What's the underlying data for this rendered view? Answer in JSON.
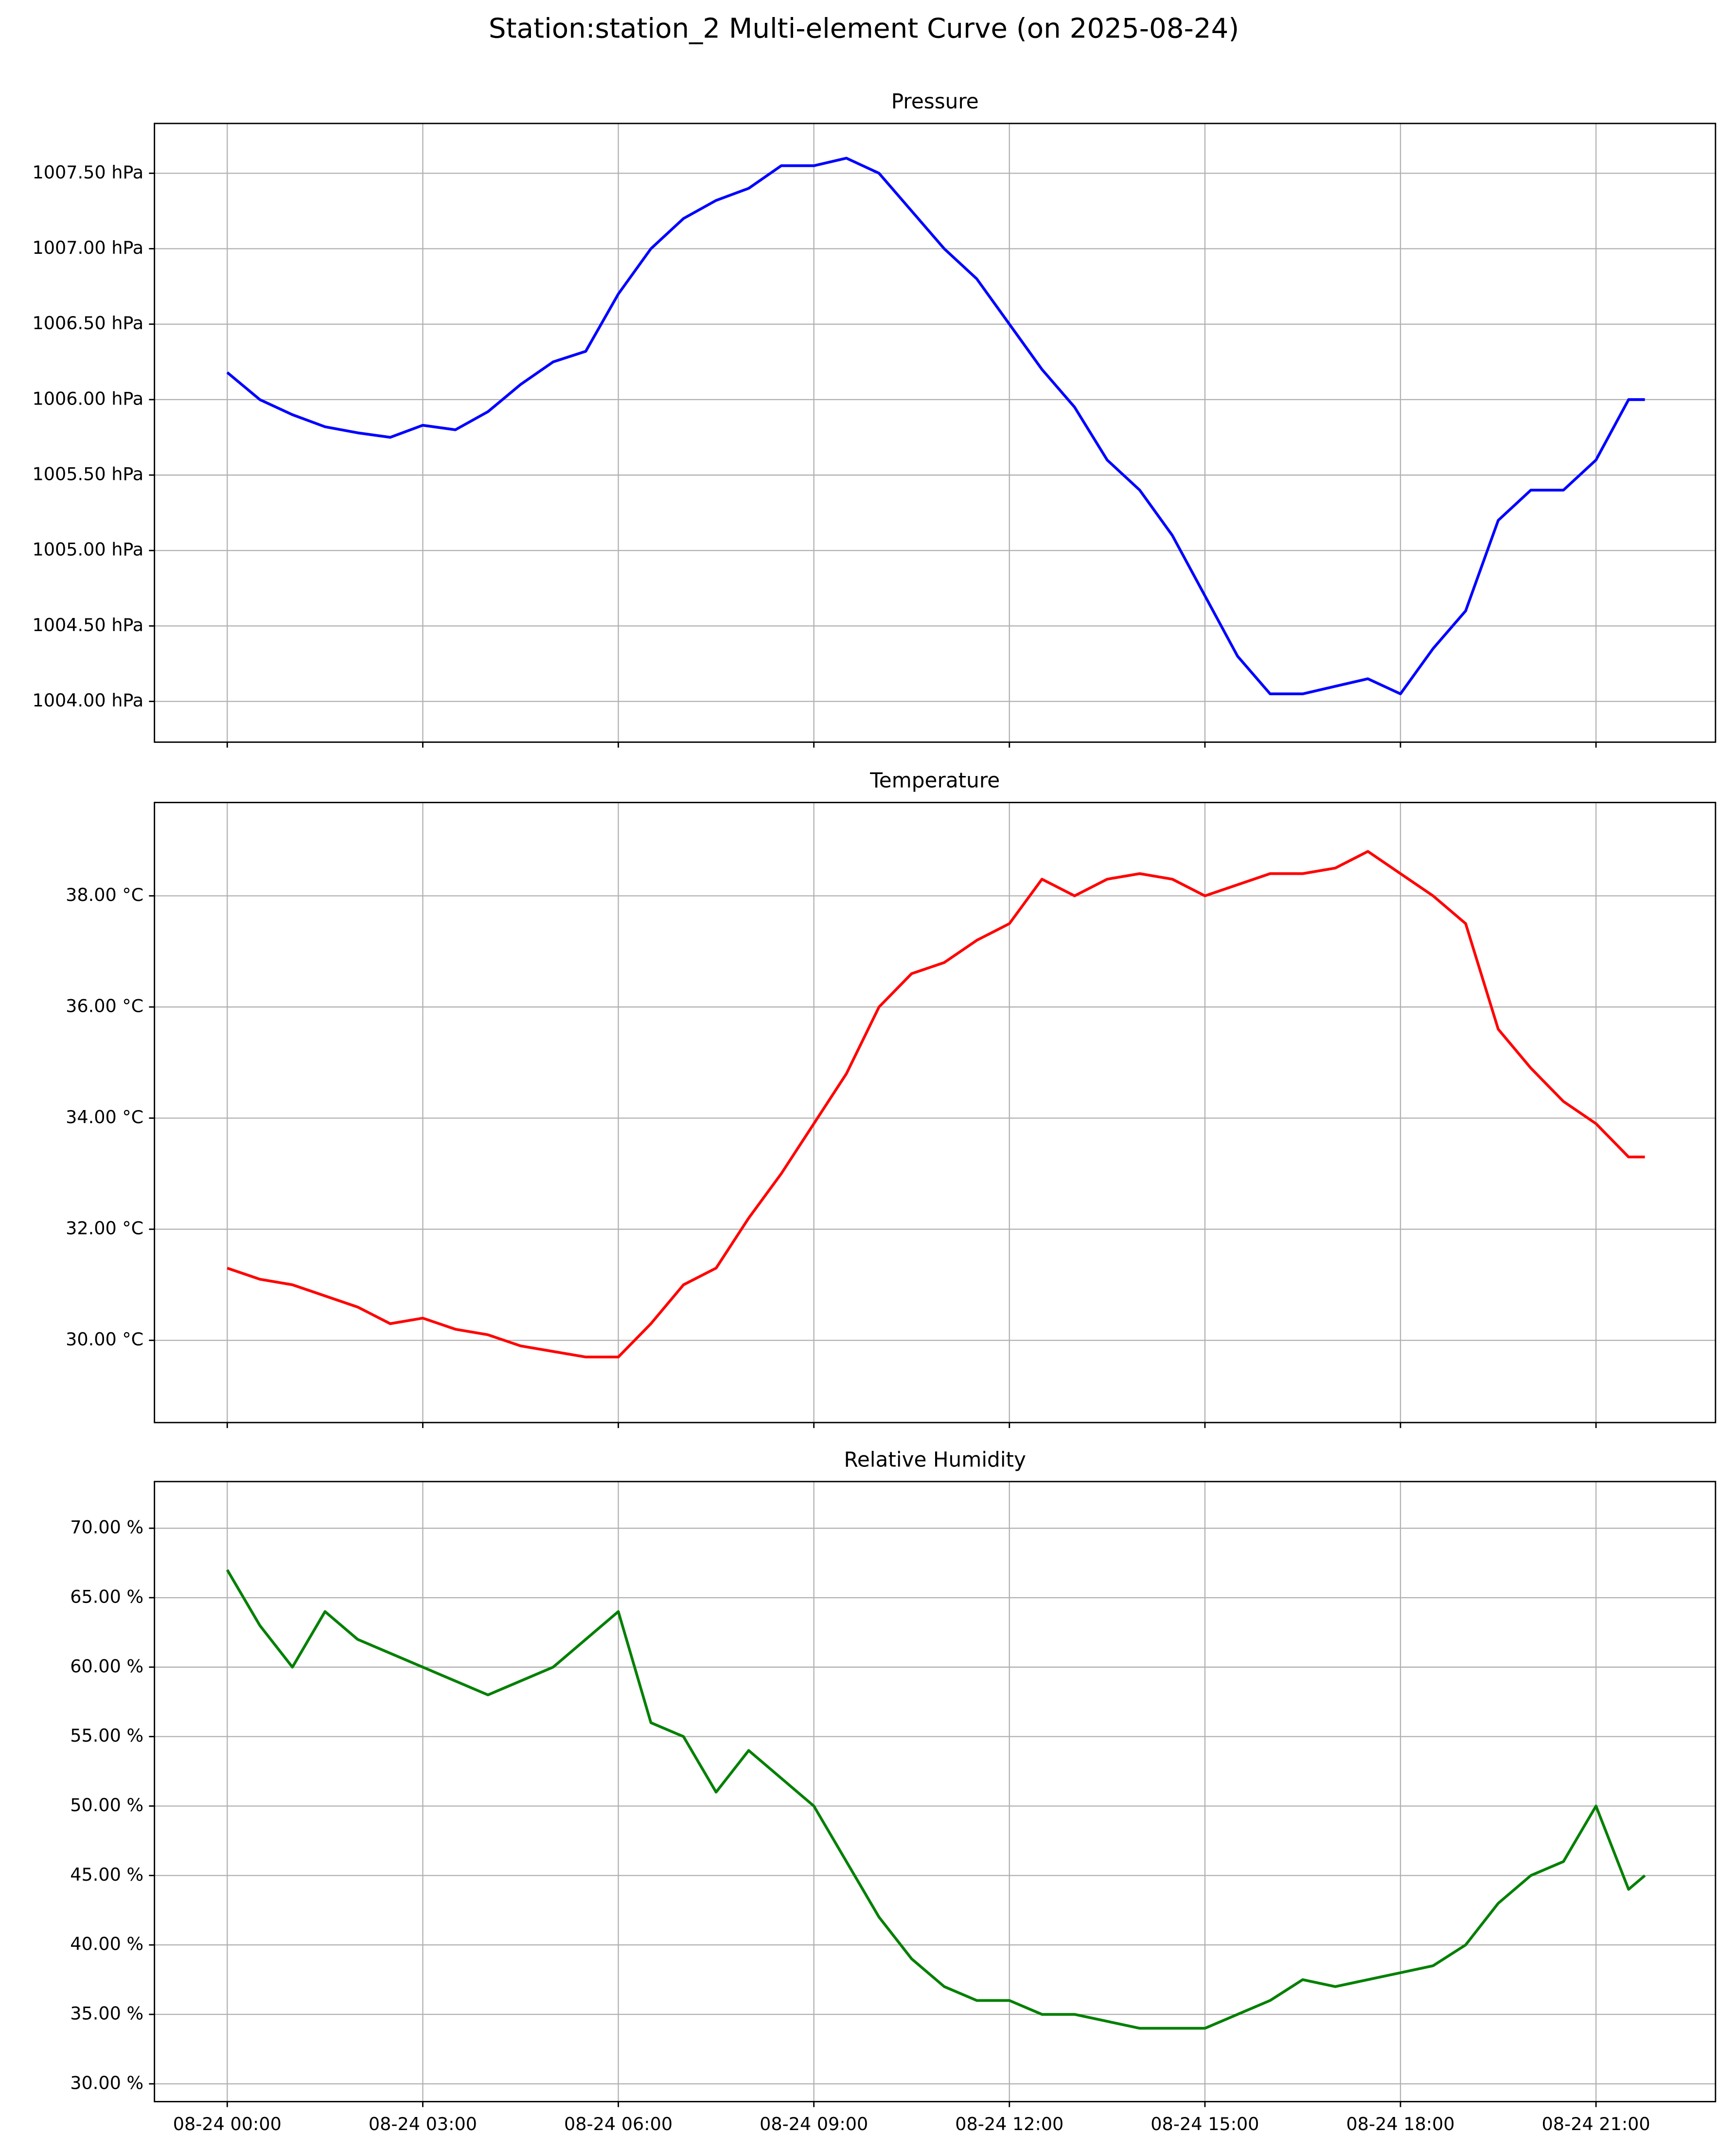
{
  "title": "Station:station_2 Multi-element Curve (on 2025-08-24)",
  "chart_data": [
    {
      "type": "line",
      "title": "Pressure",
      "color": "#0000ff",
      "grid": true,
      "show_xtick_labels": false,
      "x": [
        "08-24 00:00",
        "08-24 00:30",
        "08-24 01:00",
        "08-24 01:30",
        "08-24 02:00",
        "08-24 02:30",
        "08-24 03:00",
        "08-24 03:30",
        "08-24 04:00",
        "08-24 04:30",
        "08-24 05:00",
        "08-24 05:30",
        "08-24 06:00",
        "08-24 06:30",
        "08-24 07:00",
        "08-24 07:30",
        "08-24 08:00",
        "08-24 08:30",
        "08-24 09:00",
        "08-24 09:30",
        "08-24 10:00",
        "08-24 10:30",
        "08-24 11:00",
        "08-24 11:30",
        "08-24 12:00",
        "08-24 12:30",
        "08-24 13:00",
        "08-24 13:30",
        "08-24 14:00",
        "08-24 14:30",
        "08-24 15:00",
        "08-24 15:30",
        "08-24 16:00",
        "08-24 16:30",
        "08-24 17:00",
        "08-24 17:30",
        "08-24 18:00",
        "08-24 18:30",
        "08-24 19:00",
        "08-24 19:30",
        "08-24 20:00",
        "08-24 20:30",
        "08-24 21:00",
        "08-24 21:30",
        "08-24 21:45"
      ],
      "values": [
        1006.18,
        1006.0,
        1005.9,
        1005.82,
        1005.78,
        1005.75,
        1005.83,
        1005.8,
        1005.92,
        1006.1,
        1006.25,
        1006.32,
        1006.7,
        1007.0,
        1007.2,
        1007.32,
        1007.4,
        1007.55,
        1007.55,
        1007.6,
        1007.5,
        1007.25,
        1007.0,
        1006.8,
        1006.5,
        1006.2,
        1005.95,
        1005.6,
        1005.4,
        1005.1,
        1004.7,
        1004.3,
        1004.05,
        1004.05,
        1004.1,
        1004.15,
        1004.05,
        1004.35,
        1004.6,
        1005.2,
        1005.4,
        1005.4,
        1005.6,
        1006.0,
        1006.0
      ],
      "xlim": [
        "08-23 22:53",
        "08-24 22:50"
      ],
      "xticks": [
        "08-24 00:00",
        "08-24 03:00",
        "08-24 06:00",
        "08-24 09:00",
        "08-24 12:00",
        "08-24 15:00",
        "08-24 18:00",
        "08-24 21:00"
      ],
      "ylim": [
        1003.73,
        1007.83
      ],
      "yticks": [
        {
          "value": 1004.0,
          "label": "1004.00 hPa"
        },
        {
          "value": 1004.5,
          "label": "1004.50 hPa"
        },
        {
          "value": 1005.0,
          "label": "1005.00 hPa"
        },
        {
          "value": 1005.5,
          "label": "1005.50 hPa"
        },
        {
          "value": 1006.0,
          "label": "1006.00 hPa"
        },
        {
          "value": 1006.5,
          "label": "1006.50 hPa"
        },
        {
          "value": 1007.0,
          "label": "1007.00 hPa"
        },
        {
          "value": 1007.5,
          "label": "1007.50 hPa"
        }
      ]
    },
    {
      "type": "line",
      "title": "Temperature",
      "color": "#ff0000",
      "grid": true,
      "show_xtick_labels": false,
      "x": [
        "08-24 00:00",
        "08-24 00:30",
        "08-24 01:00",
        "08-24 01:30",
        "08-24 02:00",
        "08-24 02:30",
        "08-24 03:00",
        "08-24 03:30",
        "08-24 04:00",
        "08-24 04:30",
        "08-24 05:00",
        "08-24 05:30",
        "08-24 06:00",
        "08-24 06:30",
        "08-24 07:00",
        "08-24 07:30",
        "08-24 08:00",
        "08-24 08:30",
        "08-24 09:00",
        "08-24 09:30",
        "08-24 10:00",
        "08-24 10:30",
        "08-24 11:00",
        "08-24 11:30",
        "08-24 12:00",
        "08-24 12:30",
        "08-24 13:00",
        "08-24 13:30",
        "08-24 14:00",
        "08-24 14:30",
        "08-24 15:00",
        "08-24 15:30",
        "08-24 16:00",
        "08-24 16:30",
        "08-24 17:00",
        "08-24 17:30",
        "08-24 18:00",
        "08-24 18:30",
        "08-24 19:00",
        "08-24 19:30",
        "08-24 20:00",
        "08-24 20:30",
        "08-24 21:00",
        "08-24 21:30",
        "08-24 21:45"
      ],
      "values": [
        31.3,
        31.1,
        31.0,
        30.8,
        30.6,
        30.3,
        30.4,
        30.2,
        30.1,
        29.9,
        29.8,
        29.7,
        29.7,
        30.3,
        31.0,
        31.3,
        32.2,
        33.0,
        33.9,
        34.8,
        36.0,
        36.6,
        36.8,
        37.2,
        37.5,
        38.3,
        38.0,
        38.3,
        38.4,
        38.3,
        38.0,
        38.2,
        38.4,
        38.4,
        38.5,
        38.8,
        38.4,
        38.0,
        37.5,
        35.6,
        34.9,
        34.3,
        33.9,
        33.3,
        33.3
      ],
      "xlim": [
        "08-23 22:53",
        "08-24 22:50"
      ],
      "xticks": [
        "08-24 00:00",
        "08-24 03:00",
        "08-24 06:00",
        "08-24 09:00",
        "08-24 12:00",
        "08-24 15:00",
        "08-24 18:00",
        "08-24 21:00"
      ],
      "ylim": [
        28.52,
        39.68
      ],
      "yticks": [
        {
          "value": 30,
          "label": "30.00 °C"
        },
        {
          "value": 32,
          "label": "32.00 °C"
        },
        {
          "value": 34,
          "label": "34.00 °C"
        },
        {
          "value": 36,
          "label": "36.00 °C"
        },
        {
          "value": 38,
          "label": "38.00 °C"
        }
      ]
    },
    {
      "type": "line",
      "title": "Relative Humidity",
      "color": "#008000",
      "grid": true,
      "show_xtick_labels": true,
      "x": [
        "08-24 00:00",
        "08-24 00:30",
        "08-24 01:00",
        "08-24 01:30",
        "08-24 02:00",
        "08-24 02:30",
        "08-24 03:00",
        "08-24 03:30",
        "08-24 04:00",
        "08-24 04:30",
        "08-24 05:00",
        "08-24 05:30",
        "08-24 06:00",
        "08-24 06:30",
        "08-24 07:00",
        "08-24 07:30",
        "08-24 08:00",
        "08-24 08:30",
        "08-24 09:00",
        "08-24 09:30",
        "08-24 10:00",
        "08-24 10:30",
        "08-24 11:00",
        "08-24 11:30",
        "08-24 12:00",
        "08-24 12:30",
        "08-24 13:00",
        "08-24 13:30",
        "08-24 14:00",
        "08-24 14:30",
        "08-24 15:00",
        "08-24 15:30",
        "08-24 16:00",
        "08-24 16:30",
        "08-24 17:00",
        "08-24 17:30",
        "08-24 18:00",
        "08-24 18:30",
        "08-24 19:00",
        "08-24 19:30",
        "08-24 20:00",
        "08-24 20:30",
        "08-24 21:00",
        "08-24 21:30",
        "08-24 21:45"
      ],
      "values": [
        67,
        63,
        60,
        64,
        62,
        61,
        60,
        59,
        58,
        59,
        60,
        62,
        64,
        56,
        55,
        51,
        54,
        52,
        50,
        46,
        42,
        39,
        37,
        36,
        36,
        35,
        35,
        34.5,
        34,
        34,
        34,
        35,
        36,
        37.5,
        37,
        37.5,
        38,
        38.5,
        40,
        43,
        45,
        46,
        50,
        44,
        45
      ],
      "xlim": [
        "08-23 22:53",
        "08-24 22:50"
      ],
      "xticks": [
        "08-24 00:00",
        "08-24 03:00",
        "08-24 06:00",
        "08-24 09:00",
        "08-24 12:00",
        "08-24 15:00",
        "08-24 18:00",
        "08-24 21:00"
      ],
      "ylim": [
        28.72,
        73.36
      ],
      "yticks": [
        {
          "value": 30,
          "label": "30.00 %"
        },
        {
          "value": 35,
          "label": "35.00 %"
        },
        {
          "value": 40,
          "label": "40.00 %"
        },
        {
          "value": 45,
          "label": "45.00 %"
        },
        {
          "value": 50,
          "label": "50.00 %"
        },
        {
          "value": 55,
          "label": "55.00 %"
        },
        {
          "value": 60,
          "label": "60.00 %"
        },
        {
          "value": 65,
          "label": "65.00 %"
        },
        {
          "value": 70,
          "label": "70.00 %"
        }
      ]
    }
  ]
}
